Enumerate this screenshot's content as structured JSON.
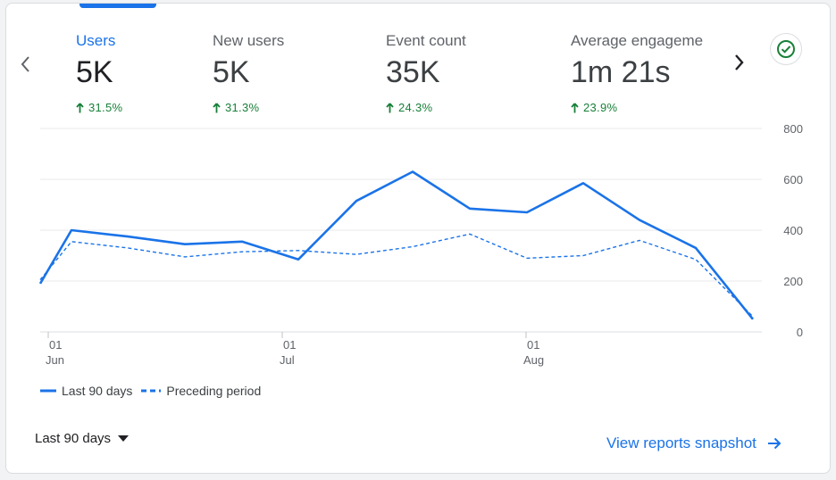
{
  "metrics": [
    {
      "label": "Users",
      "value": "5K",
      "change": "31.5%",
      "active": true
    },
    {
      "label": "New users",
      "value": "5K",
      "change": "31.3%",
      "active": false
    },
    {
      "label": "Event count",
      "value": "35K",
      "change": "24.3%",
      "active": false
    },
    {
      "label": "Average engageme",
      "value": "1m 21s",
      "change": "23.9%",
      "active": false
    }
  ],
  "chart_data": {
    "type": "line",
    "y_ticks": [
      "800",
      "600",
      "400",
      "200",
      "0"
    ],
    "ylim": [
      0,
      800
    ],
    "x_ticks": [
      {
        "day": "01",
        "month": "Jun"
      },
      {
        "day": "01",
        "month": "Jul"
      },
      {
        "day": "01",
        "month": "Aug"
      }
    ],
    "series": [
      {
        "name": "Last 90 days",
        "style": "solid",
        "color": "#1a73e8",
        "values": [
          190,
          400,
          375,
          345,
          355,
          285,
          515,
          630,
          485,
          470,
          585,
          440,
          330,
          50
        ]
      },
      {
        "name": "Preceding period",
        "style": "dashed",
        "color": "#1a73e8",
        "values": [
          205,
          355,
          330,
          295,
          315,
          320,
          305,
          335,
          385,
          290,
          300,
          360,
          285,
          60
        ]
      }
    ],
    "grid": true,
    "legend_position": "bottom-left"
  },
  "footer": {
    "period_label": "Last 90 days",
    "snapshot_link": "View reports snapshot"
  },
  "colors": {
    "accent": "#1a73e8",
    "positive": "#188038"
  },
  "icons": {
    "prev": "chevron-left-icon",
    "next": "chevron-right-icon",
    "status": "check-circle-icon",
    "trend": "arrow-up-icon",
    "dropdown": "caret-down-icon",
    "link": "arrow-right-icon"
  }
}
